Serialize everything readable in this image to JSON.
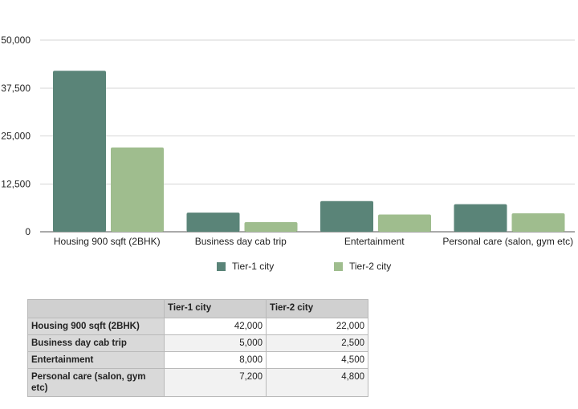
{
  "chart_data": {
    "type": "bar",
    "categories": [
      "Housing 900 sqft (2BHK)",
      "Business day cab trip",
      "Entertainment",
      "Personal care (salon, gym etc)"
    ],
    "series": [
      {
        "name": "Tier-1 city",
        "values": [
          42000,
          5000,
          8000,
          7200
        ],
        "color": "#5a8478"
      },
      {
        "name": "Tier-2 city",
        "values": [
          22000,
          2500,
          4500,
          4800
        ],
        "color": "#9fbd8e"
      }
    ],
    "yticks": [
      "0",
      "12,500",
      "25,000",
      "37,500",
      "50,000"
    ],
    "ylim": [
      0,
      50000
    ],
    "grid": true,
    "legend_position": "bottom"
  },
  "table": {
    "corner": "",
    "columns": [
      "Tier-1 city",
      "Tier-2 city"
    ],
    "rows": [
      {
        "label": "Housing 900 sqft (2BHK)",
        "values": [
          "42,000",
          "22,000"
        ]
      },
      {
        "label": "Business day cab trip",
        "values": [
          "5,000",
          "2,500"
        ]
      },
      {
        "label": "Entertainment",
        "values": [
          "8,000",
          "4,500"
        ]
      },
      {
        "label": "Personal care (salon, gym etc)",
        "values": [
          "7,200",
          "4,800"
        ]
      }
    ]
  }
}
